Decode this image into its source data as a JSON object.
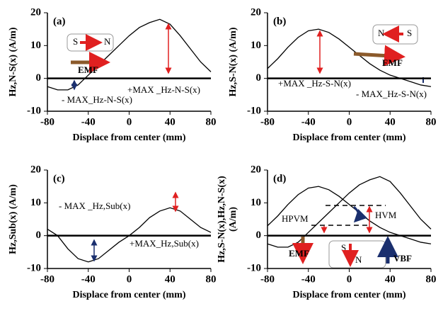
{
  "chart_data": [
    {
      "type": "line",
      "panel_label": "(a)",
      "ylabel": [
        "Hz,N-S(x) (A/m)"
      ],
      "xlabel": "Displace from center (mm)",
      "x": [
        -80,
        -70,
        -60,
        -50,
        -40,
        -30,
        -20,
        -10,
        0,
        10,
        20,
        30,
        40,
        50,
        60,
        70,
        80
      ],
      "series": [
        {
          "color": "#000000",
          "values": [
            -2.5,
            -3.5,
            -3.5,
            -2,
            1,
            4,
            7,
            10,
            13,
            15.5,
            17,
            18,
            16.5,
            13,
            9,
            5,
            2
          ]
        }
      ],
      "xlim": [
        -80,
        80
      ],
      "ylim": [
        -10,
        20
      ],
      "xticks": [
        -80,
        -40,
        0,
        40,
        80
      ],
      "yticks": [
        -10,
        0,
        10,
        20
      ],
      "annotations": [
        "S",
        "N",
        "EMF",
        "+MAX _Hz-N-S(x)",
        "- MAX_Hz-N-S(x)"
      ]
    },
    {
      "type": "line",
      "panel_label": "(b)",
      "ylabel": [
        "Hz,S-N(x) (A/m)"
      ],
      "xlabel": "Displace from center (mm)",
      "x": [
        -80,
        -70,
        -60,
        -50,
        -40,
        -30,
        -20,
        -10,
        0,
        10,
        20,
        30,
        40,
        50,
        60,
        70,
        80
      ],
      "series": [
        {
          "color": "#000000",
          "values": [
            3,
            6,
            9.5,
            12.5,
            14.5,
            15,
            14,
            12,
            9.5,
            7,
            4.5,
            2.5,
            1,
            0,
            -1,
            -2,
            -2.5
          ]
        }
      ],
      "xlim": [
        -80,
        80
      ],
      "ylim": [
        -10,
        20
      ],
      "xticks": [
        -80,
        -40,
        0,
        40,
        80
      ],
      "yticks": [
        -10,
        0,
        10,
        20
      ],
      "annotations": [
        "N",
        "S",
        "EMF",
        "+MAX _Hz-S-N(x)",
        "- MAX_Hz-S-N(x)"
      ]
    },
    {
      "type": "line",
      "panel_label": "(c)",
      "ylabel": [
        "Hz,Sub(x) (A/m)"
      ],
      "xlabel": "Displace from center (mm)",
      "x": [
        -80,
        -70,
        -60,
        -50,
        -40,
        -30,
        -20,
        -10,
        0,
        10,
        20,
        30,
        40,
        50,
        60,
        70,
        80
      ],
      "series": [
        {
          "color": "#000000",
          "values": [
            2,
            0,
            -4,
            -7,
            -8,
            -7,
            -4.5,
            -2,
            0,
            2.5,
            5.5,
            7.5,
            8.5,
            7.5,
            5,
            2.5,
            1
          ]
        }
      ],
      "xlim": [
        -80,
        80
      ],
      "ylim": [
        -10,
        20
      ],
      "xticks": [
        -80,
        -40,
        0,
        40,
        80
      ],
      "yticks": [
        -10,
        0,
        10,
        20
      ],
      "annotations": [
        "- MAX _Hz,Sub(x)",
        "+MAX_Hz,Sub(x)"
      ]
    },
    {
      "type": "line",
      "panel_label": "(d)",
      "ylabel": [
        "Hz,S-N(x),Hz,N-S(x)",
        "(A/m)"
      ],
      "xlabel": "Displace from center (mm)",
      "x": [
        -80,
        -70,
        -60,
        -50,
        -40,
        -30,
        -20,
        -10,
        0,
        10,
        20,
        30,
        40,
        50,
        60,
        70,
        80
      ],
      "series": [
        {
          "color": "#000000",
          "values": [
            -2.5,
            -3.5,
            -3.5,
            -2,
            1,
            4,
            7,
            10,
            13,
            15.5,
            17,
            18,
            16.5,
            13,
            9,
            5,
            2
          ]
        },
        {
          "color": "#000000",
          "values": [
            3,
            6,
            9.5,
            12.5,
            14.5,
            15,
            14,
            12,
            9.5,
            7,
            4.5,
            2.5,
            1,
            0,
            -1,
            -2,
            -2.5
          ]
        }
      ],
      "xlim": [
        -80,
        80
      ],
      "ylim": [
        -10,
        20
      ],
      "xticks": [
        -80,
        -40,
        0,
        40,
        80
      ],
      "yticks": [
        -10,
        0,
        10,
        20
      ],
      "annotations": [
        "HPVM",
        "HVM",
        "S",
        "N",
        "EMF",
        "VBF"
      ]
    }
  ]
}
